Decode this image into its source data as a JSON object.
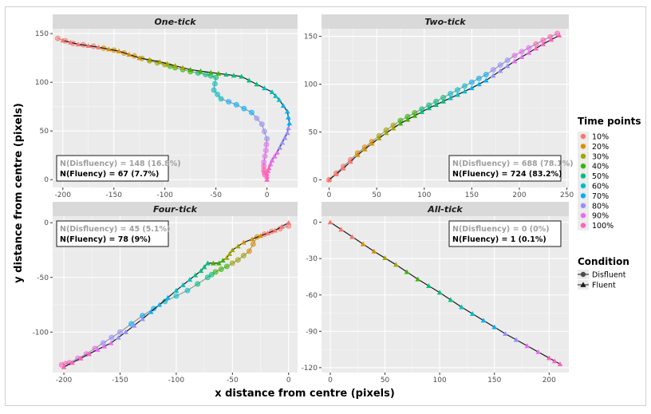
{
  "figure": {
    "xlabel": "x distance from centre (pixels)",
    "ylabel": "y distance from centre (pixels)"
  },
  "legend": {
    "time_title": "Time points",
    "time_items": [
      {
        "label": "10%",
        "color": "#F8766D"
      },
      {
        "label": "20%",
        "color": "#D89000"
      },
      {
        "label": "30%",
        "color": "#A3A500"
      },
      {
        "label": "40%",
        "color": "#39B600"
      },
      {
        "label": "50%",
        "color": "#00BF7D"
      },
      {
        "label": "60%",
        "color": "#00BFC4"
      },
      {
        "label": "70%",
        "color": "#00B0F6"
      },
      {
        "label": "80%",
        "color": "#9590FF"
      },
      {
        "label": "90%",
        "color": "#E76BF3"
      },
      {
        "label": "100%",
        "color": "#FF62BC"
      }
    ],
    "condition_title": "Condition",
    "condition_items": [
      {
        "label": "Disfluent",
        "marker": "circle"
      },
      {
        "label": "Fluent",
        "marker": "triangle"
      }
    ]
  },
  "chart_data": [
    {
      "type": "line",
      "title": "One-tick",
      "xlim": [
        -210,
        30
      ],
      "ylim": [
        -8,
        155
      ],
      "xticks": [
        -200,
        -150,
        -100,
        -50,
        0
      ],
      "yticks": [
        0,
        50,
        100,
        150
      ],
      "annotation": {
        "disfluency": "N(Disfluency) = 148 (16.8%)",
        "fluency": "N(Fluency) = 67 (7.7%)"
      },
      "series": [
        {
          "name": "Disfluent",
          "points": [
            [
              -205,
              145
            ],
            [
              -190,
              140
            ],
            [
              -170,
              137
            ],
            [
              -150,
              133
            ],
            [
              -130,
              127
            ],
            [
              -115,
              122
            ],
            [
              -100,
              118
            ],
            [
              -90,
              115
            ],
            [
              -75,
              111
            ],
            [
              -60,
              108
            ],
            [
              -50,
              105
            ],
            [
              -52,
              92
            ],
            [
              -45,
              83
            ],
            [
              -30,
              77
            ],
            [
              -15,
              69
            ],
            [
              -5,
              57
            ],
            [
              0,
              42
            ],
            [
              -1,
              30
            ],
            [
              -3,
              18
            ],
            [
              -3,
              10
            ],
            [
              -2,
              5
            ]
          ]
        },
        {
          "name": "Fluent",
          "points": [
            [
              -200,
              143
            ],
            [
              -185,
              139
            ],
            [
              -165,
              136
            ],
            [
              -145,
              132
            ],
            [
              -125,
              125
            ],
            [
              -105,
              121
            ],
            [
              -90,
              117
            ],
            [
              -75,
              113
            ],
            [
              -55,
              110
            ],
            [
              -40,
              108
            ],
            [
              -25,
              106
            ],
            [
              -10,
              98
            ],
            [
              5,
              90
            ],
            [
              12,
              82
            ],
            [
              20,
              70
            ],
            [
              22,
              58
            ],
            [
              20,
              48
            ],
            [
              15,
              38
            ],
            [
              10,
              28
            ],
            [
              5,
              20
            ],
            [
              2,
              12
            ],
            [
              0,
              6
            ],
            [
              0,
              0
            ]
          ]
        }
      ]
    },
    {
      "type": "line",
      "title": "Two-tick",
      "xlim": [
        -8,
        252
      ],
      "ylim": [
        -8,
        158
      ],
      "xticks": [
        0,
        50,
        100,
        150,
        200,
        250
      ],
      "yticks": [
        0,
        50,
        100,
        150
      ],
      "annotation": {
        "disfluency": "N(Disfluency) = 688 (78.1%)",
        "fluency": "N(Fluency) = 724 (83.2%)"
      },
      "series": [
        {
          "name": "Disfluent",
          "points": [
            [
              0,
              0
            ],
            [
              15,
              14
            ],
            [
              30,
              28
            ],
            [
              45,
              40
            ],
            [
              60,
              52
            ],
            [
              75,
              62
            ],
            [
              90,
              70
            ],
            [
              105,
              78
            ],
            [
              120,
              86
            ],
            [
              135,
              94
            ],
            [
              150,
              102
            ],
            [
              165,
              110
            ],
            [
              180,
              120
            ],
            [
              195,
              130
            ],
            [
              210,
              138
            ],
            [
              225,
              146
            ],
            [
              240,
              153
            ]
          ]
        },
        {
          "name": "Fluent",
          "points": [
            [
              0,
              0
            ],
            [
              15,
              12
            ],
            [
              30,
              26
            ],
            [
              45,
              38
            ],
            [
              60,
              49
            ],
            [
              75,
              59
            ],
            [
              90,
              67
            ],
            [
              105,
              75
            ],
            [
              120,
              82
            ],
            [
              135,
              89
            ],
            [
              150,
              96
            ],
            [
              165,
              104
            ],
            [
              180,
              114
            ],
            [
              195,
              124
            ],
            [
              210,
              133
            ],
            [
              225,
              142
            ],
            [
              242,
              151
            ]
          ]
        }
      ]
    },
    {
      "type": "line",
      "title": "Four-tick",
      "xlim": [
        -210,
        8
      ],
      "ylim": [
        -137,
        6
      ],
      "xticks": [
        -200,
        -150,
        -100,
        -50,
        0
      ],
      "yticks": [
        0,
        -50,
        -100
      ],
      "annotation": {
        "disfluency": "N(Disfluency) = 45 (5.1%)",
        "fluency": "N(Fluency) = 78 (9%)"
      },
      "series": [
        {
          "name": "Disfluent",
          "points": [
            [
              0,
              -3
            ],
            [
              -15,
              -8
            ],
            [
              -28,
              -13
            ],
            [
              -35,
              -26
            ],
            [
              -45,
              -34
            ],
            [
              -55,
              -40
            ],
            [
              -65,
              -45
            ],
            [
              -72,
              -50
            ],
            [
              -90,
              -62
            ],
            [
              -110,
              -72
            ],
            [
              -130,
              -85
            ],
            [
              -150,
              -100
            ],
            [
              -165,
              -110
            ],
            [
              -180,
              -120
            ],
            [
              -195,
              -128
            ],
            [
              -202,
              -130
            ]
          ]
        },
        {
          "name": "Fluent",
          "points": [
            [
              0,
              0
            ],
            [
              -12,
              -7
            ],
            [
              -25,
              -12
            ],
            [
              -40,
              -18
            ],
            [
              -50,
              -25
            ],
            [
              -55,
              -32
            ],
            [
              -62,
              -37
            ],
            [
              -72,
              -37
            ],
            [
              -78,
              -44
            ],
            [
              -88,
              -52
            ],
            [
              -100,
              -62
            ],
            [
              -115,
              -75
            ],
            [
              -130,
              -88
            ],
            [
              -145,
              -100
            ],
            [
              -158,
              -110
            ],
            [
              -170,
              -116
            ],
            [
              -185,
              -124
            ],
            [
              -200,
              -132
            ]
          ]
        }
      ]
    },
    {
      "type": "line",
      "title": "All-tick",
      "xlim": [
        -8,
        218
      ],
      "ylim": [
        -124,
        5
      ],
      "xticks": [
        0,
        50,
        100,
        150,
        200
      ],
      "yticks": [
        0,
        -30,
        -60,
        -90,
        -120
      ],
      "annotation": {
        "disfluency": "N(Disfluency) = 0 (0%)",
        "fluency": "N(Fluency) = 1 (0.1%)"
      },
      "series": [
        {
          "name": "Fluent",
          "points": [
            [
              0,
              0
            ],
            [
              20,
              -12
            ],
            [
              40,
              -24
            ],
            [
              60,
              -35
            ],
            [
              80,
              -47
            ],
            [
              100,
              -58
            ],
            [
              120,
              -70
            ],
            [
              140,
              -81
            ],
            [
              160,
              -92
            ],
            [
              180,
              -102
            ],
            [
              200,
              -112
            ],
            [
              210,
              -117
            ]
          ]
        }
      ]
    }
  ]
}
